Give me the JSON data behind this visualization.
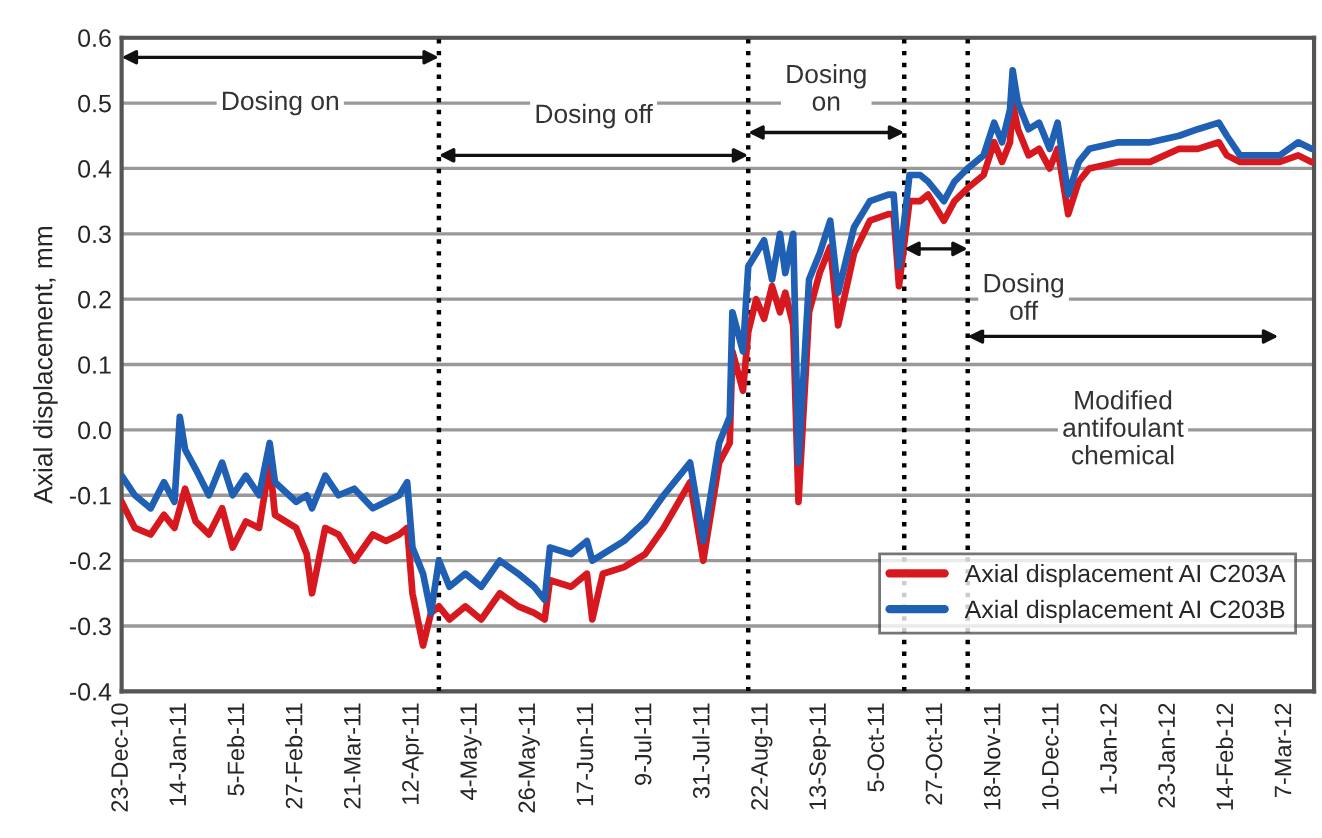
{
  "chart_data": {
    "type": "line",
    "ylabel": "Axial displacement, mm",
    "x": [
      "2010-12-23",
      "2010-12-28",
      "2011-01-03",
      "2011-01-08",
      "2011-01-12",
      "2011-01-14",
      "2011-01-16",
      "2011-01-20",
      "2011-01-25",
      "2011-01-30",
      "2011-02-03",
      "2011-02-08",
      "2011-02-13",
      "2011-02-17",
      "2011-02-19",
      "2011-02-27",
      "2011-03-03",
      "2011-03-05",
      "2011-03-10",
      "2011-03-15",
      "2011-03-21",
      "2011-03-28",
      "2011-04-02",
      "2011-04-07",
      "2011-04-10",
      "2011-04-12",
      "2011-04-16",
      "2011-04-19",
      "2011-04-22",
      "2011-04-26",
      "2011-05-02",
      "2011-05-08",
      "2011-05-15",
      "2011-05-22",
      "2011-05-28",
      "2011-06-01",
      "2011-06-03",
      "2011-06-11",
      "2011-06-17",
      "2011-06-19",
      "2011-06-23",
      "2011-07-01",
      "2011-07-09",
      "2011-07-16",
      "2011-07-26",
      "2011-07-31",
      "2011-08-06",
      "2011-08-10",
      "2011-08-11",
      "2011-08-15",
      "2011-08-17",
      "2011-08-20",
      "2011-08-23",
      "2011-08-26",
      "2011-08-29",
      "2011-08-31",
      "2011-09-03",
      "2011-09-05",
      "2011-09-09",
      "2011-09-13",
      "2011-09-17",
      "2011-09-20",
      "2011-09-26",
      "2011-10-02",
      "2011-10-09",
      "2011-10-11",
      "2011-10-13",
      "2011-10-17",
      "2011-10-21",
      "2011-10-24",
      "2011-10-30",
      "2011-11-03",
      "2011-11-08",
      "2011-11-14",
      "2011-11-18",
      "2011-11-21",
      "2011-11-24",
      "2011-11-25",
      "2011-11-27",
      "2011-12-01",
      "2011-12-05",
      "2011-12-09",
      "2011-12-12",
      "2011-12-16",
      "2011-12-20",
      "2011-12-24",
      "2012-01-04",
      "2012-01-16",
      "2012-01-27",
      "2012-02-03",
      "2012-02-11",
      "2012-02-14",
      "2012-02-19",
      "2012-03-05",
      "2012-03-12",
      "2012-03-17"
    ],
    "series": [
      {
        "name": "Axial displacement AI C203A",
        "color": "#d7191f",
        "values": [
          -0.11,
          -0.15,
          -0.16,
          -0.13,
          -0.15,
          -0.12,
          -0.09,
          -0.14,
          -0.16,
          -0.12,
          -0.18,
          -0.14,
          -0.15,
          -0.05,
          -0.13,
          -0.15,
          -0.19,
          -0.25,
          -0.15,
          -0.16,
          -0.2,
          -0.16,
          -0.17,
          -0.16,
          -0.15,
          -0.25,
          -0.33,
          -0.28,
          -0.27,
          -0.29,
          -0.27,
          -0.29,
          -0.25,
          -0.27,
          -0.28,
          -0.29,
          -0.23,
          -0.24,
          -0.22,
          -0.29,
          -0.22,
          -0.21,
          -0.19,
          -0.15,
          -0.08,
          -0.2,
          -0.05,
          -0.02,
          0.12,
          0.06,
          0.15,
          0.2,
          0.17,
          0.22,
          0.18,
          0.21,
          0.16,
          -0.11,
          0.18,
          0.24,
          0.28,
          0.16,
          0.27,
          0.32,
          0.33,
          0.33,
          0.22,
          0.35,
          0.35,
          0.36,
          0.32,
          0.35,
          0.37,
          0.39,
          0.44,
          0.41,
          0.44,
          0.5,
          0.46,
          0.42,
          0.43,
          0.4,
          0.43,
          0.33,
          0.38,
          0.4,
          0.41,
          0.41,
          0.43,
          0.43,
          0.44,
          0.42,
          0.41,
          0.41,
          0.42,
          0.41
        ]
      },
      {
        "name": "Axial displacement AI C203B",
        "color": "#1f5fb4",
        "values": [
          -0.07,
          -0.1,
          -0.12,
          -0.08,
          -0.11,
          0.02,
          -0.03,
          -0.06,
          -0.1,
          -0.05,
          -0.1,
          -0.07,
          -0.1,
          -0.02,
          -0.08,
          -0.11,
          -0.1,
          -0.12,
          -0.07,
          -0.1,
          -0.09,
          -0.12,
          -0.11,
          -0.1,
          -0.08,
          -0.18,
          -0.22,
          -0.28,
          -0.2,
          -0.24,
          -0.22,
          -0.24,
          -0.2,
          -0.22,
          -0.24,
          -0.26,
          -0.18,
          -0.19,
          -0.17,
          -0.2,
          -0.19,
          -0.17,
          -0.14,
          -0.1,
          -0.05,
          -0.17,
          -0.02,
          0.02,
          0.18,
          0.12,
          0.25,
          0.27,
          0.29,
          0.23,
          0.3,
          0.24,
          0.3,
          -0.05,
          0.23,
          0.27,
          0.32,
          0.21,
          0.31,
          0.35,
          0.36,
          0.36,
          0.25,
          0.39,
          0.39,
          0.38,
          0.35,
          0.38,
          0.4,
          0.42,
          0.47,
          0.44,
          0.49,
          0.55,
          0.5,
          0.46,
          0.47,
          0.43,
          0.47,
          0.36,
          0.41,
          0.43,
          0.44,
          0.44,
          0.45,
          0.46,
          0.47,
          0.45,
          0.42,
          0.42,
          0.44,
          0.43
        ]
      }
    ],
    "xlim": [
      "2010-12-23",
      "2012-03-18"
    ],
    "xticks": [
      {
        "value": "2010-12-23",
        "label": "23-Dec-10"
      },
      {
        "value": "2011-01-14",
        "label": "14-Jan-11"
      },
      {
        "value": "2011-02-05",
        "label": "5-Feb-11"
      },
      {
        "value": "2011-02-27",
        "label": "27-Feb-11"
      },
      {
        "value": "2011-03-21",
        "label": "21-Mar-11"
      },
      {
        "value": "2011-04-12",
        "label": "12-Apr-11"
      },
      {
        "value": "2011-05-04",
        "label": "4-May-11"
      },
      {
        "value": "2011-05-26",
        "label": "26-May-11"
      },
      {
        "value": "2011-06-17",
        "label": "17-Jun-11"
      },
      {
        "value": "2011-07-09",
        "label": "9-Jul-11"
      },
      {
        "value": "2011-07-31",
        "label": "31-Jul-11"
      },
      {
        "value": "2011-08-22",
        "label": "22-Aug-11"
      },
      {
        "value": "2011-09-13",
        "label": "13-Sep-11"
      },
      {
        "value": "2011-10-05",
        "label": "5-Oct-11"
      },
      {
        "value": "2011-10-27",
        "label": "27-Oct-11"
      },
      {
        "value": "2011-11-18",
        "label": "18-Nov-11"
      },
      {
        "value": "2011-12-10",
        "label": "10-Dec-11"
      },
      {
        "value": "2012-01-01",
        "label": "1-Jan-12"
      },
      {
        "value": "2012-01-23",
        "label": "23-Jan-12"
      },
      {
        "value": "2012-02-14",
        "label": "14-Feb-12"
      },
      {
        "value": "2012-03-07",
        "label": "7-Mar-12"
      }
    ],
    "ylim": [
      -0.4,
      0.6
    ],
    "yticks": [
      -0.4,
      -0.3,
      -0.2,
      -0.1,
      {
        "value": 0,
        "label": "0.0"
      },
      0.1,
      0.2,
      0.3,
      0.4,
      0.5,
      0.6
    ],
    "ref_lines": [
      {
        "axis": "x",
        "value": "2011-04-22",
        "color": "#000000",
        "line_style": "dotted"
      },
      {
        "axis": "x",
        "value": "2011-08-17",
        "color": "#000000",
        "line_style": "dotted"
      },
      {
        "axis": "x",
        "value": "2011-10-15",
        "color": "#000000",
        "line_style": "dotted"
      },
      {
        "axis": "x",
        "value": "2011-11-08",
        "color": "#000000",
        "line_style": "dotted"
      }
    ],
    "annotations": [
      "Dosing on",
      "Dosing off",
      "Dosing\non",
      "Dosing\noff",
      "Modified\nantifoulant\nchemical"
    ],
    "grid": "y",
    "legend": "bottom right",
    "line_style": "solid",
    "marker": "none"
  }
}
